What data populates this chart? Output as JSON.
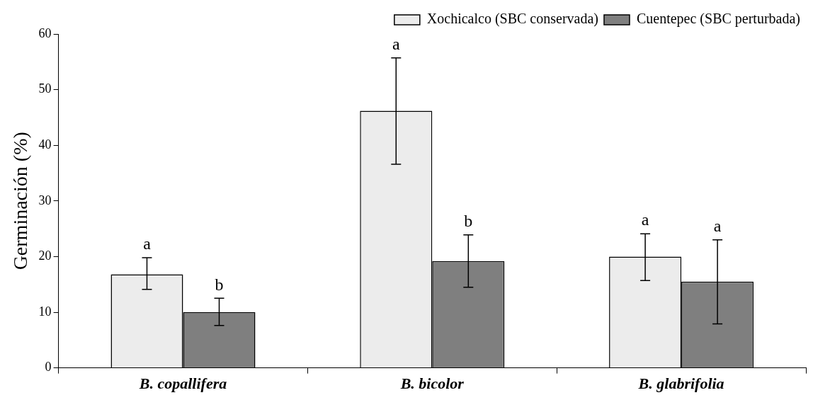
{
  "chart_data": {
    "type": "bar",
    "ylabel": "Germinación (%)",
    "categories": [
      "B. copallifera",
      "B. bicolor",
      "B. glabrifolia"
    ],
    "series": [
      {
        "name": "Xochicalco (SBC conservada)",
        "color": "#ececec",
        "values": [
          16.8,
          46.2,
          20.0
        ],
        "errors": [
          [
            14.1,
            19.8
          ],
          [
            36.6,
            55.7
          ],
          [
            15.7,
            24.1
          ]
        ]
      },
      {
        "name": "Cuentepec (SBC perturbada)",
        "color": "#7f7f7f",
        "values": [
          10.0,
          19.2,
          15.5
        ],
        "errors": [
          [
            7.6,
            12.5
          ],
          [
            14.5,
            23.9
          ],
          [
            7.9,
            23.0
          ]
        ]
      }
    ],
    "annotations": [
      "a",
      "b",
      "a",
      "b",
      "a",
      "a"
    ],
    "ylim": [
      0,
      60
    ],
    "yticks": [
      0,
      10,
      20,
      30,
      40,
      50,
      60
    ],
    "grid": false,
    "legend": "top right"
  }
}
